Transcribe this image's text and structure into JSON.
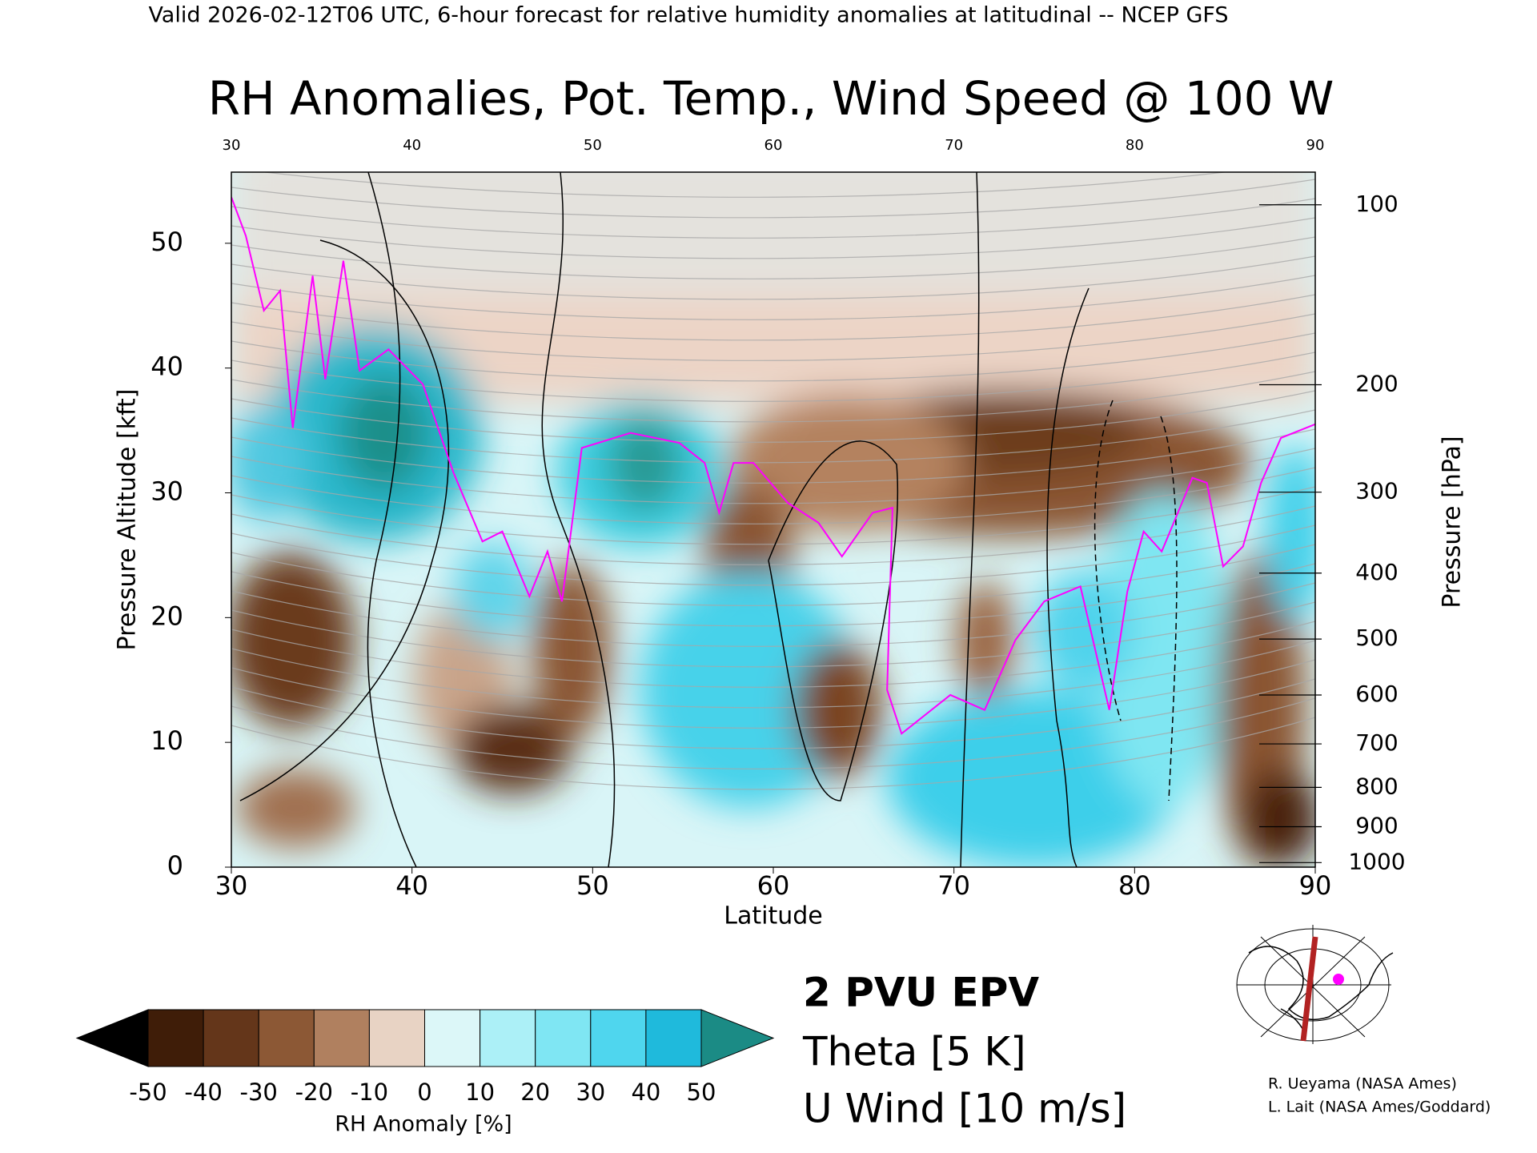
{
  "header": "Valid 2026-02-12T06 UTC, 6-hour forecast for relative humidity anomalies at latitudinal -- NCEP GFS",
  "credits": [
    "R. Ueyama (NASA Ames)",
    "L. Lait (NASA Ames/Goddard)"
  ],
  "chart_data": {
    "type": "line",
    "title": "RH Anomalies, Pot. Temp., Wind Speed @ 100 W",
    "x_label": "Latitude",
    "y_label": "Pressure Altitude [kft]",
    "y2_label": "Pressure [hPa]",
    "xlim": [
      30,
      90
    ],
    "xticks": [
      30,
      40,
      50,
      60,
      70,
      80,
      90
    ],
    "ylim": [
      0,
      55.7
    ],
    "yticks": [
      0,
      10,
      20,
      30,
      40,
      50
    ],
    "y2ticks": [
      100,
      200,
      300,
      400,
      500,
      600,
      700,
      800,
      900,
      1000
    ],
    "y2scale": "pressure-altitude",
    "series": [
      {
        "name": "2 PVU EPV",
        "color": "#ff00ff",
        "x": [
          30,
          30.8,
          31.8,
          32.7,
          33.4,
          34.5,
          35.2,
          36.2,
          37.1,
          38.7,
          40.6,
          42.3,
          43.9,
          45,
          46.5,
          47.5,
          48.3,
          49.4,
          52.1,
          54.8,
          56.2,
          57,
          57.8,
          58.9,
          60.8,
          62.5,
          63.8,
          65.5,
          66.6,
          66.3,
          67.1,
          69.8,
          71.7,
          73.4,
          75,
          77,
          78.6,
          79.6,
          80.5,
          81.5,
          83.2,
          84,
          84.9,
          86,
          87,
          88.1,
          90
        ],
        "values": [
          53.7,
          50.6,
          44.6,
          46.2,
          35.2,
          47.4,
          39.1,
          48.6,
          39.8,
          41.5,
          38.7,
          31.6,
          26.1,
          26.9,
          21.7,
          25.3,
          21.3,
          33.6,
          34.8,
          34,
          32.4,
          28.4,
          32.4,
          32.4,
          29.2,
          27.6,
          24.9,
          28.4,
          28.8,
          14.2,
          10.7,
          13.8,
          12.6,
          18.2,
          21.3,
          22.5,
          12.6,
          22.1,
          26.9,
          25.3,
          31.2,
          30.8,
          24.1,
          25.7,
          30.8,
          34.4,
          35.5
        ]
      }
    ],
    "legend": [
      {
        "name": "Theta [5 K]",
        "color": "#a8a8a8"
      },
      {
        "name": "U Wind [10 m/s]",
        "color": "#000000"
      }
    ],
    "colorbar": {
      "label": "RH Anomaly [%]",
      "ticks": [
        -50,
        -40,
        -30,
        -20,
        -10,
        0,
        10,
        20,
        30,
        40,
        50
      ],
      "colors": [
        "#3f1d08",
        "#64361a",
        "#8c5835",
        "#b0805f",
        "#e8d3c4",
        "#dcf7f8",
        "#acf0f7",
        "#7fe6f3",
        "#4fd6ee",
        "#1fbadc"
      ],
      "under": "#000000",
      "over": "#1b8b85"
    }
  }
}
